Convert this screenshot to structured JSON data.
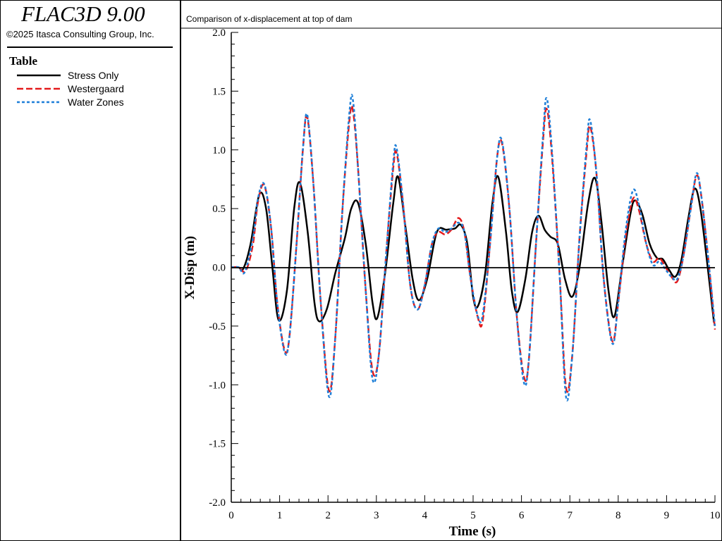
{
  "app": {
    "title": "FLAC3D 9.00",
    "copyright": "©2025 Itasca Consulting Group, Inc."
  },
  "legend": {
    "title": "Table",
    "items": [
      {
        "label": "Stress Only",
        "color": "#000000",
        "style": "solid"
      },
      {
        "label": "Westergaard",
        "color": "#e41a1c",
        "style": "dashed"
      },
      {
        "label": "Water Zones",
        "color": "#1e7fd8",
        "style": "dotted"
      }
    ]
  },
  "chart_data": {
    "type": "line",
    "title": "Comparison of x-displacement at top of dam",
    "xlabel": "Time (s)",
    "ylabel": "X-Disp (m)",
    "xlim": [
      0,
      10
    ],
    "ylim": [
      -2.0,
      2.0
    ],
    "xticks": [
      0,
      1,
      2,
      3,
      4,
      5,
      6,
      7,
      8,
      9,
      10
    ],
    "xtick_labels": [
      "0",
      "1",
      "2",
      "3",
      "4",
      "5",
      "6",
      "7",
      "8",
      "9",
      "10"
    ],
    "yticks": [
      2.0,
      1.5,
      1.0,
      0.5,
      0.0,
      -0.5,
      -1.0,
      -1.5,
      -2.0
    ],
    "ytick_labels": [
      "2.0",
      "1.5",
      "1.0",
      "0.5",
      "0.0",
      "-0.5",
      "-1.0",
      "-1.5",
      "-2.0"
    ],
    "zero_line": true,
    "series": [
      {
        "name": "Stress Only",
        "color": "#000000",
        "style": "solid",
        "points": [
          [
            0,
            0
          ],
          [
            0.15,
            0
          ],
          [
            0.25,
            -0.01
          ],
          [
            0.4,
            0.2
          ],
          [
            0.58,
            0.62
          ],
          [
            0.72,
            0.5
          ],
          [
            0.85,
            0.0
          ],
          [
            0.98,
            -0.45
          ],
          [
            1.15,
            -0.2
          ],
          [
            1.3,
            0.5
          ],
          [
            1.42,
            0.72
          ],
          [
            1.58,
            0.3
          ],
          [
            1.72,
            -0.3
          ],
          [
            1.82,
            -0.46
          ],
          [
            1.98,
            -0.35
          ],
          [
            2.15,
            -0.05
          ],
          [
            2.35,
            0.25
          ],
          [
            2.48,
            0.5
          ],
          [
            2.62,
            0.55
          ],
          [
            2.78,
            0.2
          ],
          [
            2.92,
            -0.3
          ],
          [
            3.02,
            -0.43
          ],
          [
            3.18,
            -0.05
          ],
          [
            3.35,
            0.55
          ],
          [
            3.45,
            0.77
          ],
          [
            3.6,
            0.35
          ],
          [
            3.75,
            -0.1
          ],
          [
            3.88,
            -0.28
          ],
          [
            4.05,
            -0.1
          ],
          [
            4.25,
            0.3
          ],
          [
            4.45,
            0.32
          ],
          [
            4.62,
            0.33
          ],
          [
            4.75,
            0.36
          ],
          [
            4.88,
            0.2
          ],
          [
            5.0,
            -0.25
          ],
          [
            5.1,
            -0.33
          ],
          [
            5.25,
            -0.05
          ],
          [
            5.4,
            0.55
          ],
          [
            5.52,
            0.77
          ],
          [
            5.68,
            0.3
          ],
          [
            5.8,
            -0.2
          ],
          [
            5.92,
            -0.38
          ],
          [
            6.08,
            -0.1
          ],
          [
            6.22,
            0.3
          ],
          [
            6.35,
            0.44
          ],
          [
            6.48,
            0.32
          ],
          [
            6.6,
            0.26
          ],
          [
            6.75,
            0.2
          ],
          [
            6.9,
            -0.1
          ],
          [
            7.05,
            -0.25
          ],
          [
            7.2,
            0.0
          ],
          [
            7.38,
            0.55
          ],
          [
            7.52,
            0.76
          ],
          [
            7.65,
            0.4
          ],
          [
            7.8,
            -0.2
          ],
          [
            7.92,
            -0.42
          ],
          [
            8.08,
            0.0
          ],
          [
            8.25,
            0.45
          ],
          [
            8.35,
            0.57
          ],
          [
            8.5,
            0.45
          ],
          [
            8.65,
            0.2
          ],
          [
            8.8,
            0.08
          ],
          [
            8.92,
            0.07
          ],
          [
            9.05,
            -0.02
          ],
          [
            9.18,
            -0.08
          ],
          [
            9.3,
            0.05
          ],
          [
            9.45,
            0.42
          ],
          [
            9.58,
            0.67
          ],
          [
            9.7,
            0.5
          ],
          [
            9.85,
            0.0
          ],
          [
            9.98,
            -0.47
          ]
        ]
      },
      {
        "name": "Westergaard",
        "color": "#e41a1c",
        "style": "dashed",
        "points": [
          [
            0,
            0
          ],
          [
            0.15,
            0
          ],
          [
            0.3,
            -0.03
          ],
          [
            0.45,
            0.2
          ],
          [
            0.55,
            0.55
          ],
          [
            0.68,
            0.7
          ],
          [
            0.82,
            0.35
          ],
          [
            0.95,
            -0.3
          ],
          [
            1.1,
            -0.7
          ],
          [
            1.2,
            -0.6
          ],
          [
            1.35,
            0.2
          ],
          [
            1.48,
            1.0
          ],
          [
            1.57,
            1.28
          ],
          [
            1.7,
            0.7
          ],
          [
            1.85,
            -0.3
          ],
          [
            2.02,
            -1.05
          ],
          [
            2.15,
            -0.6
          ],
          [
            2.3,
            0.5
          ],
          [
            2.45,
            1.28
          ],
          [
            2.52,
            1.32
          ],
          [
            2.62,
            0.85
          ],
          [
            2.78,
            -0.2
          ],
          [
            2.92,
            -0.88
          ],
          [
            3.05,
            -0.75
          ],
          [
            3.2,
            0.1
          ],
          [
            3.35,
            0.85
          ],
          [
            3.42,
            0.97
          ],
          [
            3.55,
            0.55
          ],
          [
            3.7,
            -0.15
          ],
          [
            3.85,
            -0.36
          ],
          [
            4.0,
            -0.15
          ],
          [
            4.15,
            0.2
          ],
          [
            4.28,
            0.3
          ],
          [
            4.42,
            0.28
          ],
          [
            4.55,
            0.32
          ],
          [
            4.7,
            0.42
          ],
          [
            4.82,
            0.3
          ],
          [
            4.95,
            -0.1
          ],
          [
            5.1,
            -0.43
          ],
          [
            5.2,
            -0.45
          ],
          [
            5.35,
            0.2
          ],
          [
            5.5,
            0.95
          ],
          [
            5.6,
            1.05
          ],
          [
            5.75,
            0.5
          ],
          [
            5.9,
            -0.4
          ],
          [
            6.05,
            -0.93
          ],
          [
            6.15,
            -0.8
          ],
          [
            6.3,
            0.2
          ],
          [
            6.45,
            1.1
          ],
          [
            6.52,
            1.35
          ],
          [
            6.62,
            1.0
          ],
          [
            6.78,
            0.0
          ],
          [
            6.92,
            -1.02
          ],
          [
            7.05,
            -0.75
          ],
          [
            7.2,
            0.25
          ],
          [
            7.35,
            1.0
          ],
          [
            7.42,
            1.2
          ],
          [
            7.55,
            0.8
          ],
          [
            7.7,
            -0.1
          ],
          [
            7.88,
            -0.63
          ],
          [
            8.0,
            -0.3
          ],
          [
            8.15,
            0.25
          ],
          [
            8.3,
            0.58
          ],
          [
            8.42,
            0.5
          ],
          [
            8.58,
            0.2
          ],
          [
            8.72,
            0.05
          ],
          [
            8.85,
            0.08
          ],
          [
            8.98,
            0.0
          ],
          [
            9.1,
            -0.08
          ],
          [
            9.22,
            -0.12
          ],
          [
            9.35,
            0.1
          ],
          [
            9.5,
            0.5
          ],
          [
            9.62,
            0.78
          ],
          [
            9.72,
            0.6
          ],
          [
            9.88,
            0.0
          ],
          [
            10.0,
            -0.53
          ]
        ]
      },
      {
        "name": "Water Zones",
        "color": "#1e7fd8",
        "style": "dotted",
        "points": [
          [
            0,
            0
          ],
          [
            0.15,
            0
          ],
          [
            0.28,
            -0.04
          ],
          [
            0.45,
            0.25
          ],
          [
            0.55,
            0.58
          ],
          [
            0.68,
            0.71
          ],
          [
            0.82,
            0.35
          ],
          [
            0.95,
            -0.3
          ],
          [
            1.1,
            -0.72
          ],
          [
            1.2,
            -0.6
          ],
          [
            1.35,
            0.2
          ],
          [
            1.48,
            1.0
          ],
          [
            1.57,
            1.3
          ],
          [
            1.7,
            0.7
          ],
          [
            1.85,
            -0.3
          ],
          [
            2.02,
            -1.1
          ],
          [
            2.15,
            -0.6
          ],
          [
            2.3,
            0.5
          ],
          [
            2.45,
            1.35
          ],
          [
            2.52,
            1.41
          ],
          [
            2.62,
            0.85
          ],
          [
            2.78,
            -0.2
          ],
          [
            2.92,
            -0.95
          ],
          [
            3.05,
            -0.75
          ],
          [
            3.2,
            0.1
          ],
          [
            3.35,
            0.9
          ],
          [
            3.42,
            1.01
          ],
          [
            3.55,
            0.55
          ],
          [
            3.7,
            -0.15
          ],
          [
            3.85,
            -0.36
          ],
          [
            4.0,
            -0.15
          ],
          [
            4.15,
            0.2
          ],
          [
            4.28,
            0.33
          ],
          [
            4.42,
            0.3
          ],
          [
            4.55,
            0.33
          ],
          [
            4.7,
            0.38
          ],
          [
            4.82,
            0.3
          ],
          [
            4.95,
            -0.1
          ],
          [
            5.1,
            -0.42
          ],
          [
            5.2,
            -0.4
          ],
          [
            5.35,
            0.2
          ],
          [
            5.5,
            0.95
          ],
          [
            5.6,
            1.07
          ],
          [
            5.75,
            0.5
          ],
          [
            5.9,
            -0.4
          ],
          [
            6.05,
            -0.98
          ],
          [
            6.15,
            -0.8
          ],
          [
            6.3,
            0.2
          ],
          [
            6.45,
            1.15
          ],
          [
            6.52,
            1.44
          ],
          [
            6.62,
            1.05
          ],
          [
            6.78,
            0.0
          ],
          [
            6.92,
            -1.1
          ],
          [
            7.05,
            -0.75
          ],
          [
            7.2,
            0.25
          ],
          [
            7.35,
            1.05
          ],
          [
            7.42,
            1.25
          ],
          [
            7.55,
            0.8
          ],
          [
            7.7,
            -0.1
          ],
          [
            7.88,
            -0.65
          ],
          [
            8.0,
            -0.3
          ],
          [
            8.15,
            0.3
          ],
          [
            8.3,
            0.65
          ],
          [
            8.42,
            0.55
          ],
          [
            8.58,
            0.2
          ],
          [
            8.72,
            0.02
          ],
          [
            8.85,
            0.05
          ],
          [
            8.98,
            -0.02
          ],
          [
            9.1,
            -0.08
          ],
          [
            9.22,
            -0.1
          ],
          [
            9.35,
            0.1
          ],
          [
            9.5,
            0.5
          ],
          [
            9.62,
            0.8
          ],
          [
            9.72,
            0.6
          ],
          [
            9.88,
            0.0
          ],
          [
            10.0,
            -0.5
          ]
        ]
      }
    ]
  }
}
